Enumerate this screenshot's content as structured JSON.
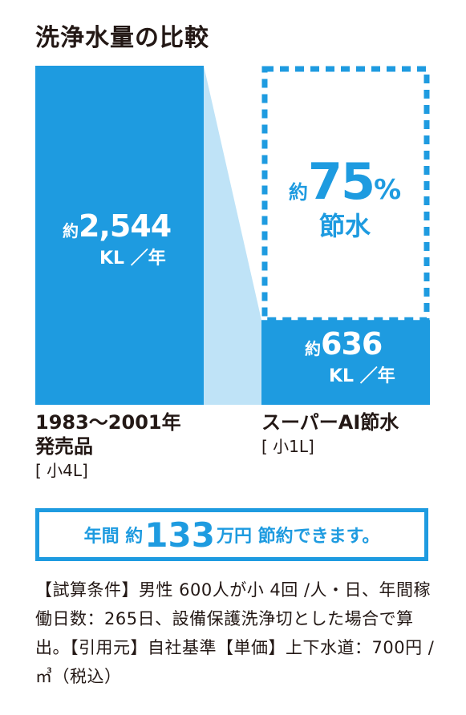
{
  "title": "洗浄水量の比較",
  "chart_data": {
    "type": "bar",
    "categories": [
      "1983〜2001年 発売品",
      "スーパーAI節水"
    ],
    "values": [
      2544,
      636
    ],
    "unit": "KL／年",
    "ylim": [
      0,
      2544
    ]
  },
  "bars": [
    {
      "prefix": "約",
      "value_label": "2,544",
      "unit_label": "KL ／年",
      "category_line1": "1983〜2001年",
      "category_line2": "発売品",
      "category_sub": "[ 小4L]"
    },
    {
      "prefix": "約",
      "value_label": "636",
      "unit_label": "KL ／年",
      "category_line1": "スーパーAI節水",
      "category_sub": "[ 小1L]"
    }
  ],
  "saving": {
    "prefix": "約",
    "value": "75",
    "percent": "%",
    "label": "節水"
  },
  "callout": {
    "part1": "年間 約",
    "amount": "133",
    "part2": "万円 節約できます。"
  },
  "notes": "【試算条件】男性 600人が小 4回 /人・日、年間稼働日数：265日、設備保護洗浄切とした場合で算出。【引用元】自社基準【単価】上下水道：700円 /㎥（税込）",
  "colors": {
    "accent": "#1e9be0",
    "connector": "#bfe3f7",
    "text": "#231815"
  }
}
